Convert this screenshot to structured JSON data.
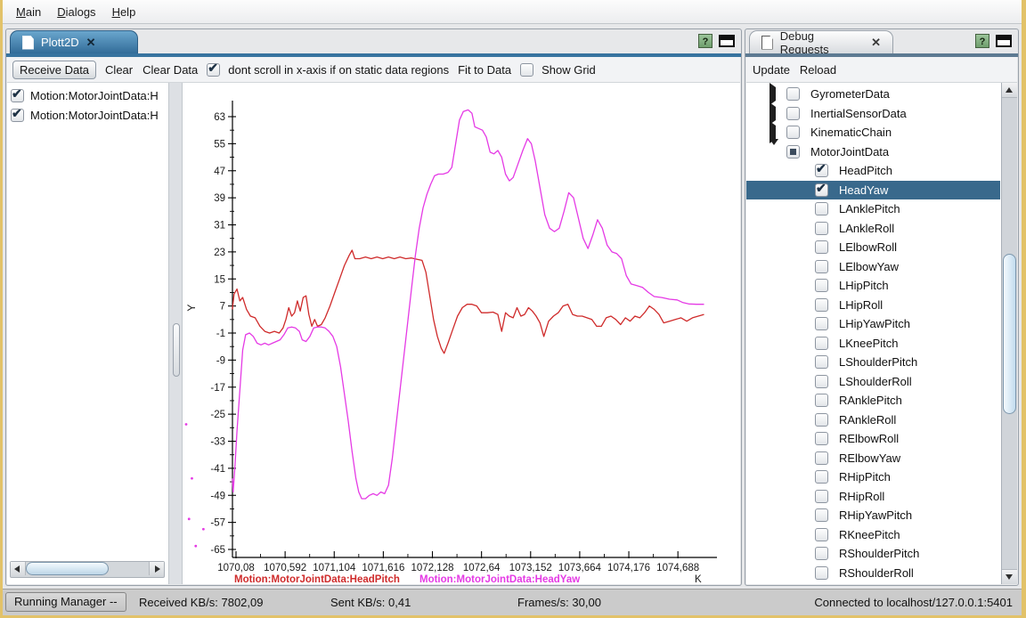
{
  "menu": {
    "items": [
      {
        "label": "Main",
        "underline": 0
      },
      {
        "label": "Dialogs",
        "underline": 0
      },
      {
        "label": "Help",
        "underline": 0
      }
    ]
  },
  "left_panel": {
    "tab_title": "Plott2D",
    "close_label": "✕",
    "toolbar": {
      "receive": "Receive Data",
      "clear": "Clear",
      "clear_data": "Clear Data",
      "dont_scroll_label": "dont scroll in x-axis if on static data regions",
      "dont_scroll_checked": true,
      "fit": "Fit to Data",
      "show_grid_label": "Show Grid",
      "show_grid_checked": false
    },
    "series_list": [
      {
        "label": "Motion:MotorJointData:H",
        "checked": true
      },
      {
        "label": "Motion:MotorJointData:H",
        "checked": true
      }
    ]
  },
  "right_panel": {
    "tab_title": "Debug Requests",
    "close_label": "✕",
    "toolbar": {
      "update": "Update",
      "reload": "Reload"
    },
    "tree": [
      {
        "label": "GyrometerData",
        "type": "parent",
        "expanded": false,
        "state": "unchecked",
        "selected": false
      },
      {
        "label": "InertialSensorData",
        "type": "parent",
        "expanded": false,
        "state": "unchecked",
        "selected": false
      },
      {
        "label": "KinematicChain",
        "type": "parent",
        "expanded": false,
        "state": "unchecked",
        "selected": false
      },
      {
        "label": "MotorJointData",
        "type": "parent",
        "expanded": true,
        "state": "partial",
        "selected": false
      },
      {
        "label": "HeadPitch",
        "type": "child",
        "state": "checked",
        "selected": false
      },
      {
        "label": "HeadYaw",
        "type": "child",
        "state": "checked",
        "selected": true
      },
      {
        "label": "LAnklePitch",
        "type": "child",
        "state": "unchecked",
        "selected": false
      },
      {
        "label": "LAnkleRoll",
        "type": "child",
        "state": "unchecked",
        "selected": false
      },
      {
        "label": "LElbowRoll",
        "type": "child",
        "state": "unchecked",
        "selected": false
      },
      {
        "label": "LElbowYaw",
        "type": "child",
        "state": "unchecked",
        "selected": false
      },
      {
        "label": "LHipPitch",
        "type": "child",
        "state": "unchecked",
        "selected": false
      },
      {
        "label": "LHipRoll",
        "type": "child",
        "state": "unchecked",
        "selected": false
      },
      {
        "label": "LHipYawPitch",
        "type": "child",
        "state": "unchecked",
        "selected": false
      },
      {
        "label": "LKneePitch",
        "type": "child",
        "state": "unchecked",
        "selected": false
      },
      {
        "label": "LShoulderPitch",
        "type": "child",
        "state": "unchecked",
        "selected": false
      },
      {
        "label": "LShoulderRoll",
        "type": "child",
        "state": "unchecked",
        "selected": false
      },
      {
        "label": "RAnklePitch",
        "type": "child",
        "state": "unchecked",
        "selected": false
      },
      {
        "label": "RAnkleRoll",
        "type": "child",
        "state": "unchecked",
        "selected": false
      },
      {
        "label": "RElbowRoll",
        "type": "child",
        "state": "unchecked",
        "selected": false
      },
      {
        "label": "RElbowYaw",
        "type": "child",
        "state": "unchecked",
        "selected": false
      },
      {
        "label": "RHipPitch",
        "type": "child",
        "state": "unchecked",
        "selected": false
      },
      {
        "label": "RHipRoll",
        "type": "child",
        "state": "unchecked",
        "selected": false
      },
      {
        "label": "RHipYawPitch",
        "type": "child",
        "state": "unchecked",
        "selected": false
      },
      {
        "label": "RKneePitch",
        "type": "child",
        "state": "unchecked",
        "selected": false
      },
      {
        "label": "RShoulderPitch",
        "type": "child",
        "state": "unchecked",
        "selected": false
      },
      {
        "label": "RShoulderRoll",
        "type": "child",
        "state": "unchecked",
        "selected": false
      }
    ]
  },
  "status_bar": {
    "manager": "Running Manager --",
    "received": "Received KB/s: 7802,09",
    "sent": "Sent KB/s: 0,41",
    "frames": "Frames/s: 30,00",
    "connection": "Connected to localhost/127.0.0.1:5401"
  },
  "chart_data": {
    "type": "line",
    "title": "",
    "xlabel": "K",
    "ylabel": "Y",
    "grid": false,
    "legend_position": "bottom",
    "x_ticks": [
      "1070,08",
      "1070,592",
      "1071,104",
      "1071,616",
      "1072,128",
      "1072,64",
      "1073,152",
      "1073,664",
      "1074,176",
      "1074,688"
    ],
    "x_tick_values": [
      1070.08,
      1070.592,
      1071.104,
      1071.616,
      1072.128,
      1072.64,
      1073.152,
      1073.664,
      1074.176,
      1074.688
    ],
    "y_ticks": [
      63,
      55,
      47,
      39,
      31,
      23,
      15,
      7,
      -1,
      -9,
      -17,
      -25,
      -33,
      -41,
      -49,
      -57,
      -65
    ],
    "xlim": [
      1070.03,
      1075.05
    ],
    "ylim": [
      -68,
      67
    ],
    "series": [
      {
        "name": "Motion:MotorJointData:HeadPitch",
        "color": "#cf2b2b",
        "points": [
          [
            1070.042,
            6
          ],
          [
            1070.06,
            10.5
          ],
          [
            1070.09,
            12
          ],
          [
            1070.12,
            8.5
          ],
          [
            1070.15,
            9.5
          ],
          [
            1070.19,
            6
          ],
          [
            1070.23,
            4
          ],
          [
            1070.28,
            3.5
          ],
          [
            1070.33,
            1
          ],
          [
            1070.38,
            -0.5
          ],
          [
            1070.43,
            -1
          ],
          [
            1070.48,
            -0.5
          ],
          [
            1070.53,
            -1
          ],
          [
            1070.57,
            0.5
          ],
          [
            1070.6,
            3
          ],
          [
            1070.63,
            6.5
          ],
          [
            1070.66,
            4
          ],
          [
            1070.69,
            5
          ],
          [
            1070.72,
            8.5
          ],
          [
            1070.75,
            5.5
          ],
          [
            1070.78,
            9.5
          ],
          [
            1070.81,
            10
          ],
          [
            1070.84,
            4.5
          ],
          [
            1070.87,
            1
          ],
          [
            1070.9,
            3
          ],
          [
            1070.93,
            1
          ],
          [
            1070.97,
            1.5
          ],
          [
            1071.01,
            3.5
          ],
          [
            1071.06,
            7
          ],
          [
            1071.11,
            11
          ],
          [
            1071.16,
            15
          ],
          [
            1071.21,
            19
          ],
          [
            1071.26,
            22
          ],
          [
            1071.29,
            23.5
          ],
          [
            1071.32,
            21
          ],
          [
            1071.37,
            21
          ],
          [
            1071.43,
            21.5
          ],
          [
            1071.49,
            21
          ],
          [
            1071.55,
            21.5
          ],
          [
            1071.61,
            21
          ],
          [
            1071.67,
            21.5
          ],
          [
            1071.73,
            21
          ],
          [
            1071.79,
            21.5
          ],
          [
            1071.85,
            21
          ],
          [
            1071.91,
            21.2
          ],
          [
            1071.97,
            20.8
          ],
          [
            1072.02,
            20.5
          ],
          [
            1072.06,
            17
          ],
          [
            1072.1,
            10
          ],
          [
            1072.14,
            3
          ],
          [
            1072.18,
            -2
          ],
          [
            1072.22,
            -5.5
          ],
          [
            1072.25,
            -7
          ],
          [
            1072.29,
            -4
          ],
          [
            1072.34,
            0
          ],
          [
            1072.39,
            4
          ],
          [
            1072.44,
            6.5
          ],
          [
            1072.49,
            7.5
          ],
          [
            1072.54,
            7.5
          ],
          [
            1072.59,
            7
          ],
          [
            1072.64,
            5
          ],
          [
            1072.7,
            5
          ],
          [
            1072.76,
            5.2
          ],
          [
            1072.81,
            4.5
          ],
          [
            1072.85,
            -0.5
          ],
          [
            1072.89,
            5
          ],
          [
            1072.93,
            4
          ],
          [
            1072.97,
            3.5
          ],
          [
            1073.01,
            6.5
          ],
          [
            1073.05,
            4
          ],
          [
            1073.09,
            4.5
          ],
          [
            1073.13,
            6.5
          ],
          [
            1073.17,
            5.5
          ],
          [
            1073.21,
            4
          ],
          [
            1073.25,
            2
          ],
          [
            1073.29,
            -2
          ],
          [
            1073.34,
            2.5
          ],
          [
            1073.39,
            4
          ],
          [
            1073.44,
            5
          ],
          [
            1073.49,
            7
          ],
          [
            1073.54,
            7.5
          ],
          [
            1073.59,
            4.5
          ],
          [
            1073.64,
            4
          ],
          [
            1073.69,
            4
          ],
          [
            1073.74,
            3.5
          ],
          [
            1073.79,
            3
          ],
          [
            1073.84,
            1
          ],
          [
            1073.89,
            1
          ],
          [
            1073.94,
            3.5
          ],
          [
            1073.99,
            4
          ],
          [
            1074.04,
            3
          ],
          [
            1074.09,
            1.5
          ],
          [
            1074.14,
            3.5
          ],
          [
            1074.19,
            2.5
          ],
          [
            1074.24,
            4
          ],
          [
            1074.29,
            3.5
          ],
          [
            1074.34,
            5
          ],
          [
            1074.39,
            7
          ],
          [
            1074.44,
            6
          ],
          [
            1074.49,
            4.5
          ],
          [
            1074.54,
            2
          ],
          [
            1074.6,
            2.5
          ],
          [
            1074.66,
            3
          ],
          [
            1074.72,
            3.5
          ],
          [
            1074.78,
            2.5
          ],
          [
            1074.84,
            3.5
          ],
          [
            1074.9,
            4
          ],
          [
            1074.96,
            4.5
          ]
        ]
      },
      {
        "name": "Motion:MotorJointData:HeadYaw",
        "color": "#e53ae5",
        "points": [
          [
            1070.042,
            -44
          ],
          [
            1070.05,
            -48
          ],
          [
            1070.07,
            -40
          ],
          [
            1070.09,
            -30
          ],
          [
            1070.12,
            -18
          ],
          [
            1070.15,
            -6
          ],
          [
            1070.18,
            -1.5
          ],
          [
            1070.22,
            -1
          ],
          [
            1070.26,
            -2
          ],
          [
            1070.3,
            -4
          ],
          [
            1070.34,
            -4.5
          ],
          [
            1070.38,
            -4
          ],
          [
            1070.42,
            -4.5
          ],
          [
            1070.46,
            -4
          ],
          [
            1070.5,
            -3.5
          ],
          [
            1070.54,
            -3
          ],
          [
            1070.58,
            -1.5
          ],
          [
            1070.62,
            0.5
          ],
          [
            1070.66,
            0.8
          ],
          [
            1070.7,
            0.5
          ],
          [
            1070.74,
            -0.5
          ],
          [
            1070.77,
            -3
          ],
          [
            1070.81,
            -3.5
          ],
          [
            1070.85,
            -2
          ],
          [
            1070.89,
            0.5
          ],
          [
            1070.93,
            0.8
          ],
          [
            1070.97,
            0.8
          ],
          [
            1071.01,
            0.5
          ],
          [
            1071.05,
            -0.5
          ],
          [
            1071.09,
            -2
          ],
          [
            1071.13,
            -5
          ],
          [
            1071.17,
            -11
          ],
          [
            1071.21,
            -19
          ],
          [
            1071.25,
            -27
          ],
          [
            1071.29,
            -36
          ],
          [
            1071.33,
            -44
          ],
          [
            1071.36,
            -48
          ],
          [
            1071.39,
            -50
          ],
          [
            1071.43,
            -50
          ],
          [
            1071.47,
            -49
          ],
          [
            1071.51,
            -48.5
          ],
          [
            1071.55,
            -49
          ],
          [
            1071.59,
            -48
          ],
          [
            1071.63,
            -48.5
          ],
          [
            1071.67,
            -46
          ],
          [
            1071.71,
            -38
          ],
          [
            1071.75,
            -28
          ],
          [
            1071.79,
            -18
          ],
          [
            1071.83,
            -8
          ],
          [
            1071.87,
            2
          ],
          [
            1071.91,
            12
          ],
          [
            1071.95,
            22
          ],
          [
            1071.99,
            30
          ],
          [
            1072.03,
            36
          ],
          [
            1072.07,
            40
          ],
          [
            1072.11,
            43
          ],
          [
            1072.15,
            45.5
          ],
          [
            1072.19,
            46
          ],
          [
            1072.24,
            46
          ],
          [
            1072.29,
            46.5
          ],
          [
            1072.33,
            48
          ],
          [
            1072.37,
            55
          ],
          [
            1072.41,
            62
          ],
          [
            1072.45,
            64.5
          ],
          [
            1072.5,
            65
          ],
          [
            1072.54,
            64
          ],
          [
            1072.57,
            60
          ],
          [
            1072.61,
            59.5
          ],
          [
            1072.65,
            59
          ],
          [
            1072.69,
            57
          ],
          [
            1072.73,
            52.5
          ],
          [
            1072.77,
            52
          ],
          [
            1072.81,
            53
          ],
          [
            1072.85,
            51
          ],
          [
            1072.89,
            46
          ],
          [
            1072.93,
            44
          ],
          [
            1072.97,
            45
          ],
          [
            1073.02,
            49
          ],
          [
            1073.07,
            53
          ],
          [
            1073.12,
            56.5
          ],
          [
            1073.16,
            55
          ],
          [
            1073.2,
            50
          ],
          [
            1073.25,
            42
          ],
          [
            1073.3,
            34
          ],
          [
            1073.35,
            30
          ],
          [
            1073.4,
            29
          ],
          [
            1073.45,
            30
          ],
          [
            1073.5,
            35
          ],
          [
            1073.55,
            40.5
          ],
          [
            1073.6,
            39
          ],
          [
            1073.65,
            33
          ],
          [
            1073.7,
            27
          ],
          [
            1073.75,
            24
          ],
          [
            1073.8,
            28
          ],
          [
            1073.85,
            32.5
          ],
          [
            1073.9,
            30
          ],
          [
            1073.95,
            25
          ],
          [
            1074.0,
            23
          ],
          [
            1074.05,
            22.5
          ],
          [
            1074.1,
            21
          ],
          [
            1074.15,
            16
          ],
          [
            1074.2,
            13.5
          ],
          [
            1074.26,
            13
          ],
          [
            1074.32,
            12.5
          ],
          [
            1074.38,
            11
          ],
          [
            1074.44,
            9.8
          ],
          [
            1074.52,
            9.5
          ],
          [
            1074.6,
            9
          ],
          [
            1074.68,
            8.8
          ],
          [
            1074.74,
            8
          ],
          [
            1074.8,
            7.6
          ],
          [
            1074.88,
            7.5
          ],
          [
            1074.96,
            7.5
          ]
        ]
      }
    ],
    "stray_points": {
      "color": "#e53ae5",
      "points": [
        [
          1069.56,
          -28
        ],
        [
          1069.62,
          -44
        ],
        [
          1069.59,
          -56
        ],
        [
          1069.74,
          -59
        ],
        [
          1069.66,
          -64
        ]
      ]
    }
  }
}
